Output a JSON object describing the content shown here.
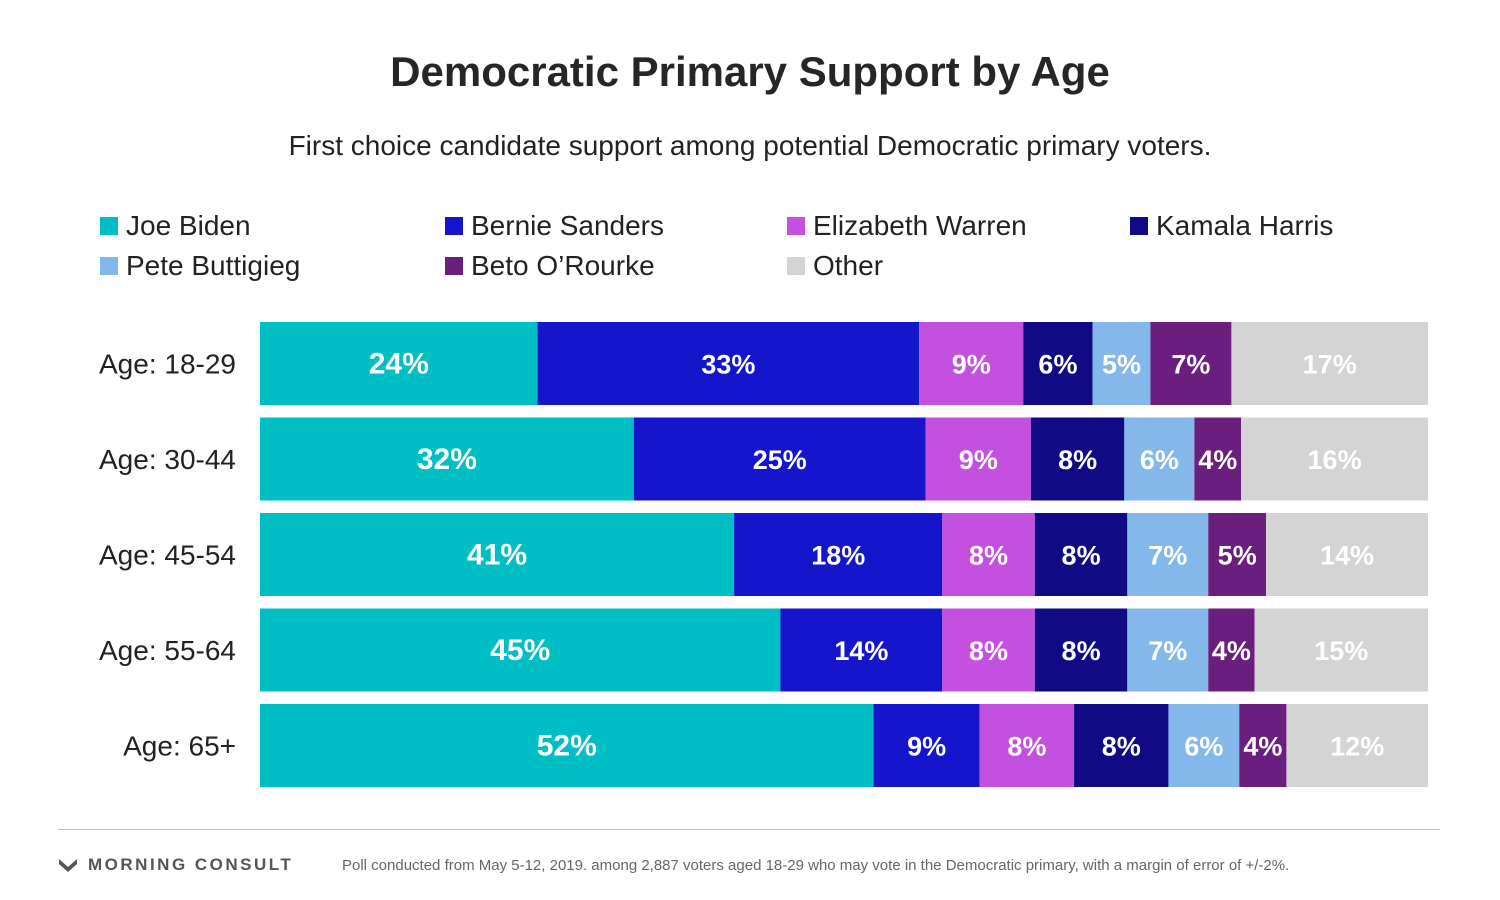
{
  "chart_data": {
    "type": "bar",
    "orientation": "horizontal",
    "stacked": true,
    "title": "Democratic Primary Support by Age",
    "subtitle": "First choice candidate support among potential Democratic primary voters.",
    "categories": [
      "Age: 18-29",
      "Age: 30-44",
      "Age: 45-54",
      "Age: 55-64",
      "Age: 65+"
    ],
    "series": [
      {
        "name": "Joe Biden",
        "color": "#00BFC4",
        "values": [
          24,
          32,
          41,
          45,
          52
        ]
      },
      {
        "name": "Bernie Sanders",
        "color": "#1515CC",
        "values": [
          33,
          25,
          18,
          14,
          9
        ]
      },
      {
        "name": "Elizabeth Warren",
        "color": "#C450E0",
        "values": [
          9,
          9,
          8,
          8,
          8
        ]
      },
      {
        "name": "Kamala Harris",
        "color": "#110A85",
        "values": [
          6,
          8,
          8,
          8,
          8
        ]
      },
      {
        "name": "Pete Buttigieg",
        "color": "#84B8EA",
        "values": [
          5,
          6,
          7,
          7,
          6
        ]
      },
      {
        "name": "Beto O’Rourke",
        "color": "#6A1E7E",
        "values": [
          7,
          4,
          5,
          4,
          4
        ]
      },
      {
        "name": "Other",
        "color": "#D4D4D4",
        "values": [
          17,
          16,
          14,
          15,
          12
        ]
      }
    ],
    "labels": [
      [
        "24%",
        "33%",
        "9%",
        "6%",
        "5%",
        "7%",
        "17%"
      ],
      [
        "32%",
        "25%",
        "9%",
        "8%",
        "6%",
        "4%",
        "16%"
      ],
      [
        "41%",
        "18%",
        "8%",
        "8%",
        "7%",
        "5%",
        "14%"
      ],
      [
        "45%",
        "14%",
        "8%",
        "8%",
        "7%",
        "4%",
        "15%"
      ],
      [
        "52%",
        "9%",
        "8%",
        "8%",
        "6%",
        "4%",
        "12%"
      ]
    ],
    "legend_position": "top",
    "grid": false
  },
  "footer": {
    "brand": "MORNING CONSULT",
    "note": "Poll conducted from May 5-12, 2019. among 2,887 voters aged 18-29 who may vote in the Democratic primary,  with a margin of error of +/-2%."
  }
}
